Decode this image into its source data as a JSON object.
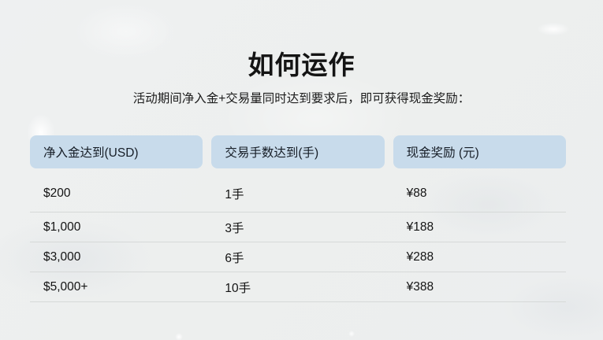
{
  "page": {
    "title": "如何运作",
    "subtitle": "活动期间净入金+交易量同时达到要求后，即可获得现金奖励："
  },
  "table": {
    "headers": [
      "净入金达到(USD)",
      "交易手数达到(手)",
      "现金奖励 (元)"
    ],
    "rows": [
      [
        "$200",
        "1手",
        "¥88"
      ],
      [
        "$1,000",
        "3手",
        "¥188"
      ],
      [
        "$3,000",
        "6手",
        "¥288"
      ],
      [
        "$5,000+",
        "10手",
        "¥388"
      ]
    ]
  },
  "colors": {
    "page_bg": "#edefef",
    "header_bg": "#c8dbeb",
    "divider": "#d6d9d8",
    "text": "#131313"
  }
}
